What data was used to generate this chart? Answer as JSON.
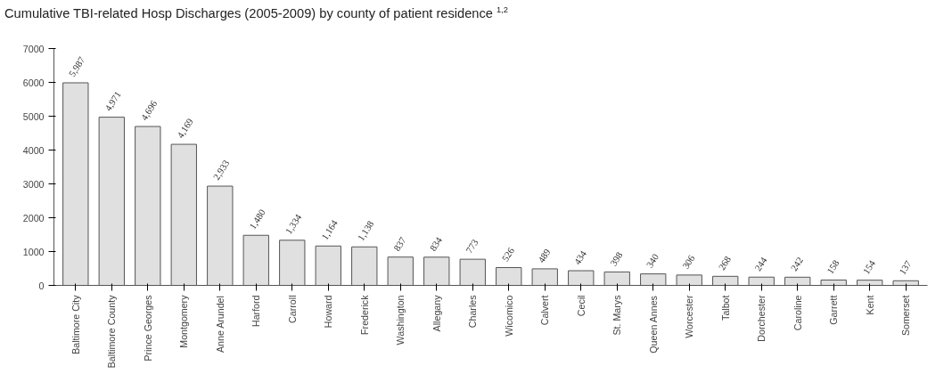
{
  "chart_data": {
    "type": "bar",
    "title": "Cumulative TBI-related Hosp Discharges (2005-2009) by county of patient residence $^{1,2}$",
    "categories": [
      "Baltimore City",
      "Baltimore County",
      "Prince Georges",
      "Montgomery",
      "Anne Arundel",
      "Harford",
      "Carroll",
      "Howard",
      "Frederick",
      "Washington",
      "Allegany",
      "Charles",
      "Wicomico",
      "Calvert",
      "Cecil",
      "St. Marys",
      "Queen Annes",
      "Worcester",
      "Talbot",
      "Dorchester",
      "Caroline",
      "Garrett",
      "Kent",
      "Somerset"
    ],
    "values": [
      5987,
      4971,
      4696,
      4169,
      2933,
      1480,
      1334,
      1164,
      1138,
      837,
      834,
      773,
      526,
      489,
      434,
      398,
      340,
      306,
      268,
      244,
      242,
      158,
      154,
      137
    ],
    "value_labels": [
      "5,987",
      "4,971",
      "4,696",
      "4,169",
      "2,933",
      "1,480",
      "1,334",
      "1,164",
      "1,138",
      "837",
      "834",
      "773",
      "526",
      "489",
      "434",
      "398",
      "340",
      "306",
      "268",
      "244",
      "242",
      "158",
      "154",
      "137"
    ],
    "color": "#e0e0e0",
    "ylim": [
      0,
      7000
    ],
    "yticks": [
      0,
      1000,
      2000,
      3000,
      4000,
      5000,
      6000,
      7000
    ],
    "grid": false
  }
}
